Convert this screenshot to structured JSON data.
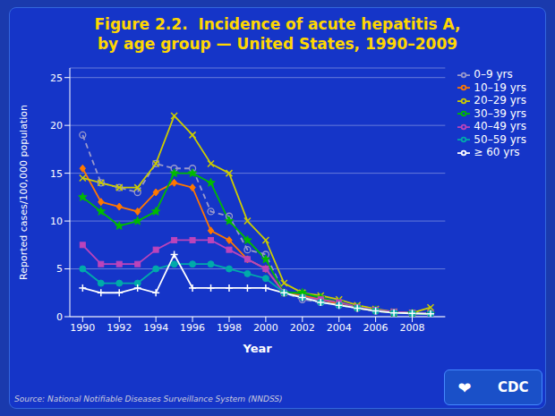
{
  "chart_data": {
    "type": "line",
    "title": "Figure 2.2.  Incidence of acute hepatitis A,",
    "subtitle": "by age group — United States, 1990–2009",
    "x_label": "Year",
    "y_label": "Reported cases/100,000 population",
    "annotations": [
      "Source: National Notifiable Diseases Surveillance System (NNDSS)",
      "❤",
      "CDC"
    ],
    "x": [
      1990,
      1991,
      1992,
      1993,
      1994,
      1995,
      1996,
      1997,
      1998,
      1999,
      2000,
      2001,
      2002,
      2003,
      2004,
      2005,
      2006,
      2007,
      2008,
      2009
    ],
    "series": [
      {
        "name": "0–9 yrs",
        "color": "#9999CC",
        "marker": "ring",
        "line_style": "dashed",
        "values": [
          19.0,
          14.0,
          13.5,
          13.0,
          16.0,
          15.5,
          15.5,
          11.0,
          10.5,
          7.0,
          6.5,
          2.5,
          1.8,
          1.5,
          1.2,
          0.9,
          0.6,
          0.4,
          0.35,
          0.3
        ]
      },
      {
        "name": "10–19 yrs",
        "color": "#FF7700",
        "marker": "diamond",
        "line_style": "solid",
        "values": [
          15.5,
          12.0,
          11.5,
          11.0,
          13.0,
          14.0,
          13.5,
          9.0,
          8.0,
          6.0,
          5.0,
          2.5,
          2.2,
          1.8,
          1.3,
          0.9,
          0.6,
          0.4,
          0.35,
          0.3
        ]
      },
      {
        "name": "20–29 yrs",
        "color": "#CCCC00",
        "marker": "x",
        "line_style": "solid",
        "values": [
          14.5,
          14.0,
          13.5,
          13.5,
          16.0,
          21.0,
          19.0,
          16.0,
          15.0,
          10.0,
          8.0,
          3.5,
          2.5,
          2.2,
          1.8,
          1.2,
          0.8,
          0.5,
          0.4,
          0.96
        ]
      },
      {
        "name": "30–39 yrs",
        "color": "#00BB00",
        "marker": "star",
        "line_style": "solid",
        "values": [
          12.5,
          11.0,
          9.5,
          10.0,
          11.0,
          15.0,
          15.0,
          14.0,
          10.0,
          8.0,
          6.0,
          2.5,
          2.5,
          2.0,
          1.5,
          1.0,
          0.7,
          0.4,
          0.35,
          0.3
        ]
      },
      {
        "name": "40–49 yrs",
        "color": "#BB44BB",
        "marker": "square",
        "line_style": "solid",
        "values": [
          7.5,
          5.5,
          5.5,
          5.5,
          7.0,
          8.0,
          8.0,
          8.0,
          7.0,
          6.0,
          5.0,
          2.5,
          2.0,
          1.8,
          1.5,
          1.0,
          0.7,
          0.5,
          0.4,
          0.35
        ]
      },
      {
        "name": "50–59 yrs",
        "color": "#00AAAA",
        "marker": "circle",
        "line_style": "solid",
        "values": [
          5.0,
          3.5,
          3.5,
          3.5,
          5.0,
          5.5,
          5.5,
          5.5,
          5.0,
          4.5,
          4.0,
          2.5,
          2.0,
          1.5,
          1.2,
          0.9,
          0.6,
          0.4,
          0.35,
          0.3
        ]
      },
      {
        "name": "≥ 60 yrs",
        "color": "#FFFFFF",
        "marker": "plus",
        "line_style": "solid",
        "values": [
          3.0,
          2.5,
          2.5,
          3.0,
          2.5,
          6.5,
          3.0,
          3.0,
          3.0,
          3.0,
          3.0,
          2.5,
          2.0,
          1.5,
          1.2,
          0.9,
          0.6,
          0.4,
          0.35,
          0.3
        ]
      }
    ],
    "xlim": [
      1989.3,
      2009.8
    ],
    "xticks": [
      1990,
      1992,
      1994,
      1996,
      1998,
      2000,
      2002,
      2004,
      2006,
      2008
    ],
    "ylim": [
      0,
      26
    ],
    "yticks": [
      0,
      5,
      10,
      15,
      20,
      25
    ],
    "grid": true,
    "legend": "right"
  }
}
